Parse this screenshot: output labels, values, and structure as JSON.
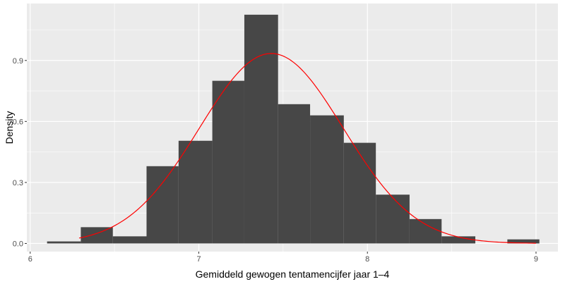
{
  "chart_data": {
    "type": "bar",
    "subtype": "histogram-with-density-curve",
    "title": "",
    "xlabel": "Gemiddeld gewogen tentamencijfer jaar 1–4",
    "ylabel": "Density",
    "xlim": [
      5.98,
      9.13
    ],
    "ylim": [
      -0.04,
      1.18
    ],
    "x_ticks": [
      6,
      7,
      8,
      9
    ],
    "x_tick_labels": [
      "6",
      "7",
      "8",
      "9"
    ],
    "y_ticks": [
      0.0,
      0.3,
      0.6,
      0.9
    ],
    "y_tick_labels": [
      "0.0",
      "0.3",
      "0.6",
      "0.9"
    ],
    "grid": true,
    "bin_width": 0.195,
    "bins": [
      {
        "x_start": 6.1,
        "x_end": 6.3,
        "density": 0.01
      },
      {
        "x_start": 6.3,
        "x_end": 6.49,
        "density": 0.08
      },
      {
        "x_start": 6.49,
        "x_end": 6.69,
        "density": 0.035
      },
      {
        "x_start": 6.69,
        "x_end": 6.88,
        "density": 0.38
      },
      {
        "x_start": 6.88,
        "x_end": 7.08,
        "density": 0.505
      },
      {
        "x_start": 7.08,
        "x_end": 7.27,
        "density": 0.8
      },
      {
        "x_start": 7.27,
        "x_end": 7.47,
        "density": 1.125
      },
      {
        "x_start": 7.47,
        "x_end": 7.66,
        "density": 0.685
      },
      {
        "x_start": 7.66,
        "x_end": 7.86,
        "density": 0.63
      },
      {
        "x_start": 7.86,
        "x_end": 8.05,
        "density": 0.495
      },
      {
        "x_start": 8.05,
        "x_end": 8.25,
        "density": 0.24
      },
      {
        "x_start": 8.25,
        "x_end": 8.44,
        "density": 0.12
      },
      {
        "x_start": 8.44,
        "x_end": 8.64,
        "density": 0.035
      },
      {
        "x_start": 8.64,
        "x_end": 8.83,
        "density": 0.0
      },
      {
        "x_start": 8.83,
        "x_end": 9.02,
        "density": 0.02
      }
    ],
    "density_curve": {
      "distribution": "normal",
      "mean": 7.43,
      "sd": 0.427,
      "x_range": [
        6.29,
        9.0
      ]
    },
    "colors": {
      "bar_fill": "#474747",
      "curve": "#ff0000",
      "panel_background": "#ebebeb",
      "grid": "#ffffff"
    }
  }
}
